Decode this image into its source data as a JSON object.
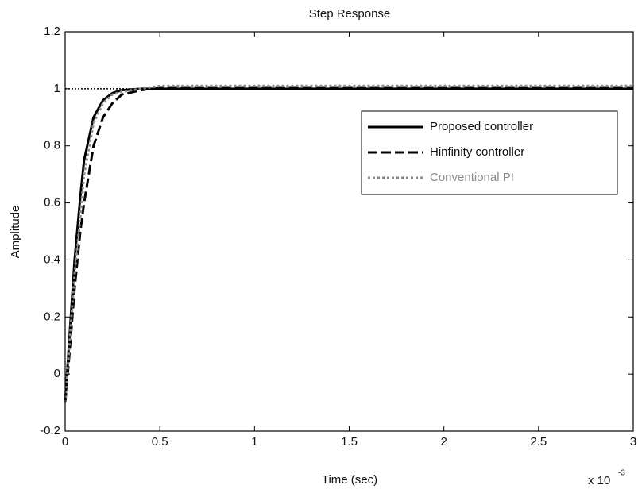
{
  "chart_data": {
    "type": "line",
    "title": "Step Response",
    "x_label": "Time (sec)",
    "y_label": "Amplitude",
    "x_scale_label": "x 10",
    "x_scale_exponent": "-3",
    "x": [
      0,
      0.02,
      0.05,
      0.08,
      0.1,
      0.15,
      0.2,
      0.25,
      0.3,
      0.4,
      0.5,
      1,
      1.5,
      2,
      2.5,
      3
    ],
    "series": [
      {
        "name": "Proposed controller",
        "color": "#000000",
        "style": "solid",
        "values": [
          -0.1,
          0.1,
          0.4,
          0.62,
          0.75,
          0.9,
          0.96,
          0.985,
          0.995,
          1,
          1,
          1,
          1,
          1,
          1,
          1
        ]
      },
      {
        "name": "Hinfinity controller",
        "color": "#000000",
        "style": "dashed",
        "values": [
          -0.1,
          0.05,
          0.3,
          0.5,
          0.6,
          0.8,
          0.9,
          0.95,
          0.98,
          0.995,
          1.005,
          1.005,
          1.005,
          1.005,
          1.005,
          1.005
        ]
      },
      {
        "name": "Conventional PI",
        "color": "#8a8a8a",
        "style": "dotted",
        "values": [
          -0.1,
          0.08,
          0.35,
          0.55,
          0.7,
          0.88,
          0.95,
          0.98,
          0.99,
          1,
          1.01,
          1.01,
          1.01,
          1.01,
          1.01,
          1.01
        ]
      }
    ],
    "steady_state": 1,
    "xlim": [
      0,
      3
    ],
    "xticks": [
      0,
      0.5,
      1,
      1.5,
      2,
      2.5,
      3
    ],
    "ylim": [
      -0.2,
      1.2
    ],
    "yticks": [
      -0.2,
      0,
      0.2,
      0.4,
      0.6,
      0.8,
      1,
      1.2
    ],
    "legend": "upper right",
    "grid": false
  }
}
